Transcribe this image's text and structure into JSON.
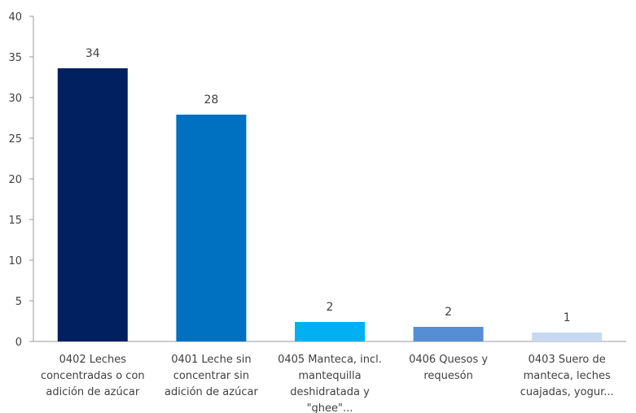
{
  "chart_data": {
    "type": "bar",
    "title": "",
    "xlabel": "",
    "ylabel": "",
    "ylim": [
      0,
      40
    ],
    "yticks": [
      0,
      5,
      10,
      15,
      20,
      25,
      30,
      35,
      40
    ],
    "grid": false,
    "legend": "none",
    "categories": [
      [
        "0402 Leches",
        "concentradas o con",
        "adición de azúcar"
      ],
      [
        "0401 Leche sin",
        "concentrar sin",
        "adición de azúcar"
      ],
      [
        "0405 Manteca, incl.",
        "mantequilla",
        "deshidratada y",
        "\"ghee\"..."
      ],
      [
        "0406 Quesos y",
        "requesón"
      ],
      [
        "0403 Suero de",
        "manteca, leches",
        "cuajadas, yogur..."
      ]
    ],
    "values": [
      33.6,
      27.9,
      2.4,
      1.8,
      1.1
    ],
    "data_labels": [
      "34",
      "28",
      "2",
      "2",
      "1"
    ],
    "colors": [
      "#002060",
      "#0070C0",
      "#00B0F0",
      "#558ED5",
      "#C6D9F1"
    ]
  }
}
